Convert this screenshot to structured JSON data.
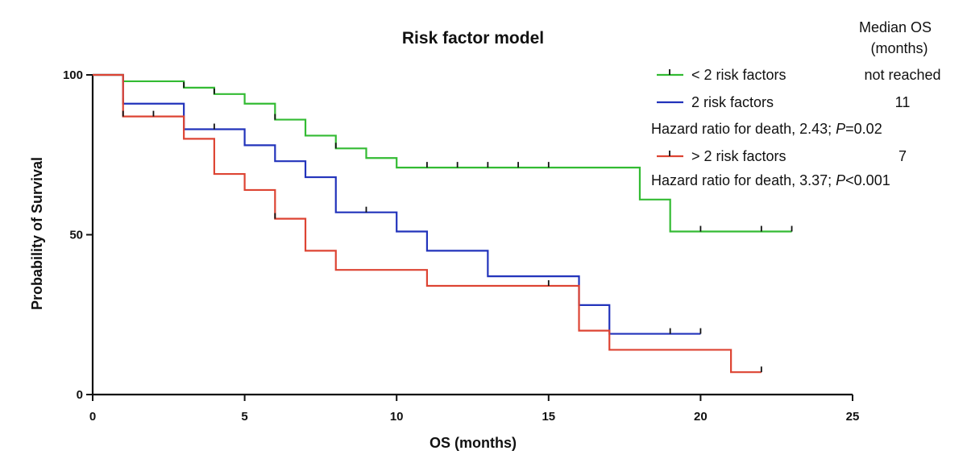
{
  "chart_data": {
    "type": "line",
    "title": "Risk factor model",
    "xlabel": "OS (months)",
    "ylabel": "Probability of Survival",
    "xlim": [
      0,
      25
    ],
    "ylim": [
      0,
      100
    ],
    "xticks": [
      0,
      5,
      10,
      15,
      20,
      25
    ],
    "yticks": [
      0,
      50,
      100
    ],
    "grid": false,
    "legend_position": "top-right",
    "legend_header": [
      "Median OS",
      "(months)"
    ],
    "series": [
      {
        "name": "< 2 risk factors",
        "color": "#33bb33",
        "median_os": "not reached",
        "hazard_note": "",
        "steps": [
          [
            0,
            100
          ],
          [
            1,
            98
          ],
          [
            3,
            96
          ],
          [
            4,
            94
          ],
          [
            5,
            91
          ],
          [
            6,
            86
          ],
          [
            7,
            81
          ],
          [
            8,
            77
          ],
          [
            9,
            74
          ],
          [
            10,
            71
          ],
          [
            18,
            61
          ],
          [
            19,
            51
          ],
          [
            23,
            51
          ]
        ],
        "censored": [
          1,
          3,
          4,
          6,
          8,
          11,
          12,
          13,
          14,
          15,
          20,
          22,
          23
        ]
      },
      {
        "name": "2 risk factors",
        "color": "#2233bb",
        "median_os": "11",
        "hazard_note": {
          "prefix": "Hazard ratio for death, 2.43; ",
          "p_label": "P",
          "p_value": "=0.02"
        },
        "steps": [
          [
            0,
            100
          ],
          [
            1,
            91
          ],
          [
            3,
            83
          ],
          [
            5,
            78
          ],
          [
            6,
            73
          ],
          [
            7,
            68
          ],
          [
            8,
            57
          ],
          [
            10,
            51
          ],
          [
            11,
            45
          ],
          [
            13,
            37
          ],
          [
            16,
            28
          ],
          [
            17,
            19
          ],
          [
            20,
            19
          ]
        ],
        "censored": [
          1,
          4,
          9,
          19,
          20
        ]
      },
      {
        "name": "> 2 risk factors",
        "color": "#dd4433",
        "median_os": "7",
        "hazard_note": {
          "prefix": "Hazard ratio for death, 3.37; ",
          "p_label": "P",
          "p_value": "<0.001"
        },
        "steps": [
          [
            0,
            100
          ],
          [
            1,
            87
          ],
          [
            3,
            80
          ],
          [
            4,
            69
          ],
          [
            5,
            64
          ],
          [
            6,
            55
          ],
          [
            7,
            45
          ],
          [
            8,
            39
          ],
          [
            11,
            34
          ],
          [
            16,
            20
          ],
          [
            17,
            14
          ],
          [
            21,
            7
          ],
          [
            22,
            7
          ]
        ],
        "censored": [
          1,
          2,
          6,
          15,
          22
        ]
      }
    ]
  }
}
